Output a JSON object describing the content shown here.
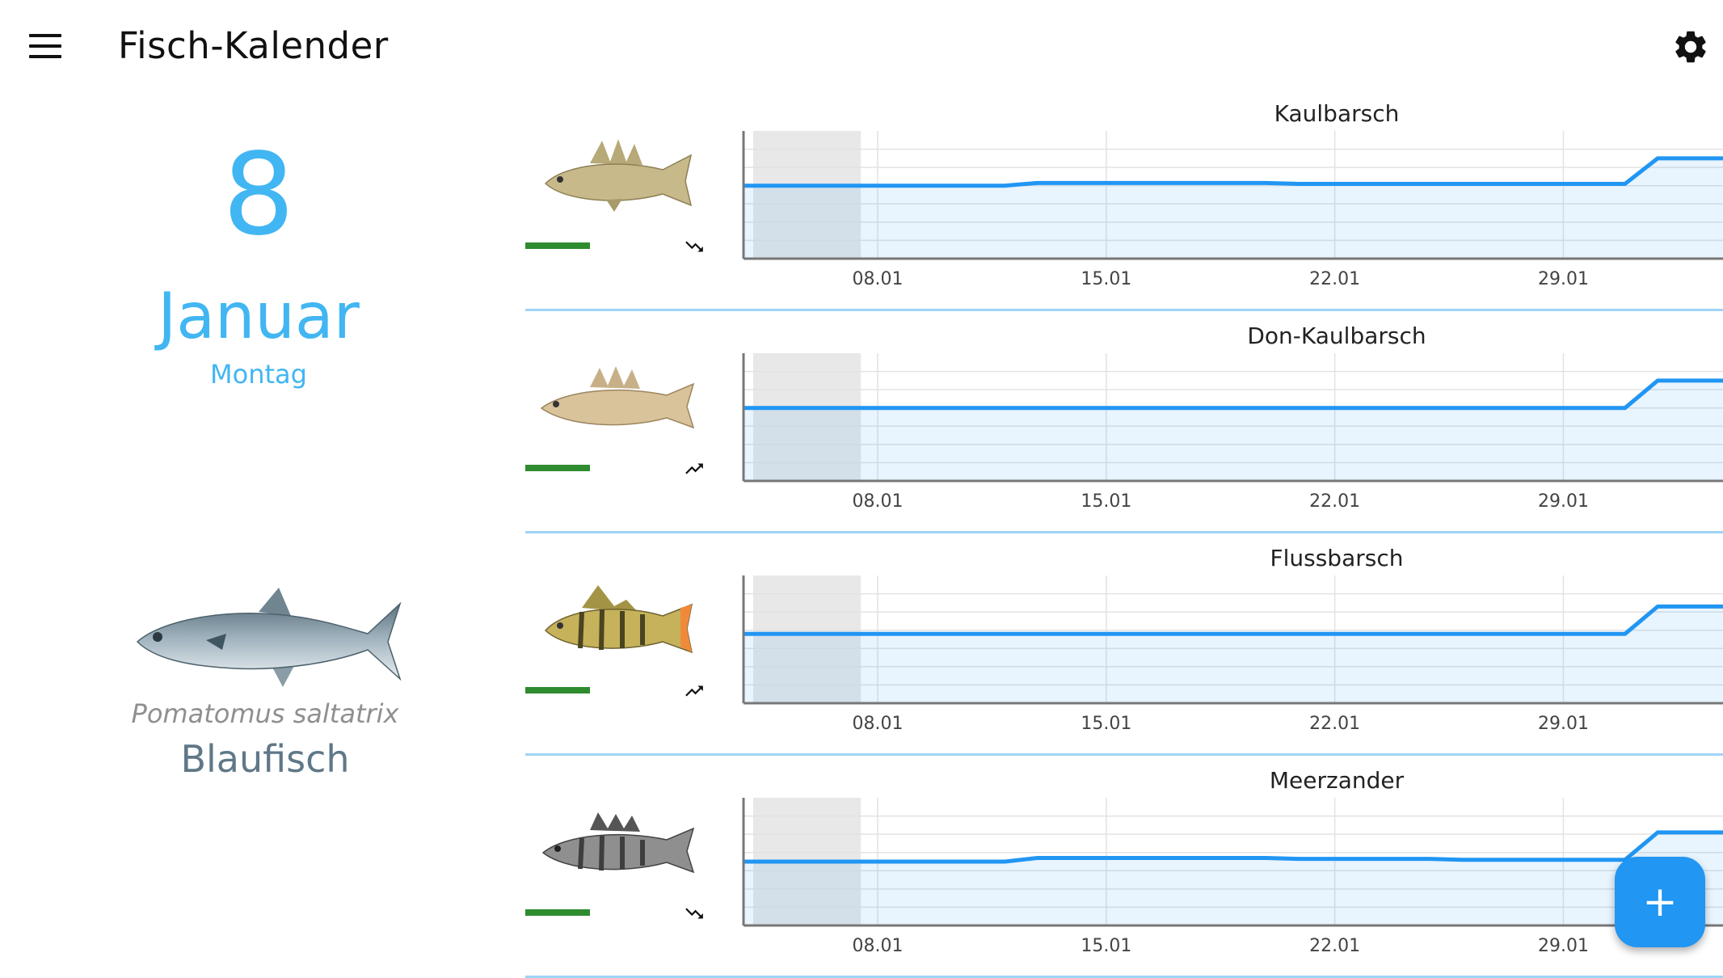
{
  "app": {
    "title": "Fisch-Kalender"
  },
  "icons": {
    "menu": "menu-icon",
    "settings": "gear-icon",
    "fab": "plus-icon"
  },
  "colors": {
    "accent": "#41b6f2",
    "line": "#2196f3",
    "trend_good": "#2e8b2e",
    "fab": "#2196f3"
  },
  "date": {
    "day": "8",
    "month": "Januar",
    "weekday": "Montag"
  },
  "featured_fish": {
    "latin_name": "Pomatomus saltatrix",
    "name": "Blaufisch"
  },
  "fish": [
    {
      "name": "Kaulbarsch",
      "trend": "trending-down"
    },
    {
      "name": "Don-Kaulbarsch",
      "trend": "trending-up"
    },
    {
      "name": "Flussbarsch",
      "trend": "trending-up"
    },
    {
      "name": "Meerzander",
      "trend": "trending-down"
    }
  ],
  "chart_data": [
    {
      "type": "area",
      "title": "Kaulbarsch",
      "x_ticks": [
        "08.01",
        "15.01",
        "22.01",
        "29.01"
      ],
      "x": [
        "05.01",
        "06.01",
        "07.01",
        "08.01",
        "09.01",
        "10.01",
        "11.01",
        "12.01",
        "13.01",
        "14.01",
        "15.01",
        "16.01",
        "17.01",
        "18.01",
        "19.01",
        "20.01",
        "21.01",
        "22.01",
        "23.01",
        "24.01",
        "25.01",
        "26.01",
        "27.01",
        "28.01",
        "29.01",
        "30.01",
        "31.01",
        "01.02",
        "02.02",
        "03.02",
        "04.02"
      ],
      "values": [
        4,
        4,
        4,
        4,
        4,
        4,
        4,
        4,
        4,
        4.15,
        4.15,
        4.15,
        4.15,
        4.15,
        4.15,
        4.15,
        4.15,
        4.1,
        4.1,
        4.1,
        4.1,
        4.1,
        4.1,
        4.1,
        4.1,
        4.1,
        4.1,
        4.1,
        5.5,
        5.5,
        5.5
      ],
      "ylim": [
        0,
        7
      ],
      "highlight_x": [
        "05.01",
        "08.01"
      ],
      "grid": true
    },
    {
      "type": "area",
      "title": "Don-Kaulbarsch",
      "x_ticks": [
        "08.01",
        "15.01",
        "22.01",
        "29.01"
      ],
      "x": [
        "05.01",
        "06.01",
        "07.01",
        "08.01",
        "09.01",
        "10.01",
        "11.01",
        "12.01",
        "13.01",
        "14.01",
        "15.01",
        "16.01",
        "17.01",
        "18.01",
        "19.01",
        "20.01",
        "21.01",
        "22.01",
        "23.01",
        "24.01",
        "25.01",
        "26.01",
        "27.01",
        "28.01",
        "29.01",
        "30.01",
        "31.01",
        "01.02",
        "02.02",
        "03.02",
        "04.02"
      ],
      "values": [
        4,
        4,
        4,
        4,
        4,
        4,
        4,
        4,
        4,
        4,
        4,
        4,
        4,
        4,
        4,
        4,
        4,
        4,
        4,
        4,
        4,
        4,
        4,
        4,
        4,
        4,
        4,
        4,
        5.5,
        5.5,
        5.5
      ],
      "ylim": [
        0,
        7
      ],
      "highlight_x": [
        "05.01",
        "08.01"
      ],
      "grid": true
    },
    {
      "type": "area",
      "title": "Flussbarsch",
      "x_ticks": [
        "08.01",
        "15.01",
        "22.01",
        "29.01"
      ],
      "x": [
        "05.01",
        "06.01",
        "07.01",
        "08.01",
        "09.01",
        "10.01",
        "11.01",
        "12.01",
        "13.01",
        "14.01",
        "15.01",
        "16.01",
        "17.01",
        "18.01",
        "19.01",
        "20.01",
        "21.01",
        "22.01",
        "23.01",
        "24.01",
        "25.01",
        "26.01",
        "27.01",
        "28.01",
        "29.01",
        "30.01",
        "31.01",
        "01.02",
        "02.02",
        "03.02",
        "04.02"
      ],
      "values": [
        3.8,
        3.8,
        3.8,
        3.8,
        3.8,
        3.8,
        3.8,
        3.8,
        3.8,
        3.8,
        3.8,
        3.8,
        3.8,
        3.8,
        3.8,
        3.8,
        3.8,
        3.8,
        3.8,
        3.8,
        3.8,
        3.8,
        3.8,
        3.8,
        3.8,
        3.8,
        3.8,
        3.8,
        5.3,
        5.3,
        5.3
      ],
      "ylim": [
        0,
        7
      ],
      "highlight_x": [
        "05.01",
        "08.01"
      ],
      "grid": true
    },
    {
      "type": "area",
      "title": "Meerzander",
      "x_ticks": [
        "08.01",
        "15.01",
        "22.01",
        "29.01"
      ],
      "x": [
        "05.01",
        "06.01",
        "07.01",
        "08.01",
        "09.01",
        "10.01",
        "11.01",
        "12.01",
        "13.01",
        "14.01",
        "15.01",
        "16.01",
        "17.01",
        "18.01",
        "19.01",
        "20.01",
        "21.01",
        "22.01",
        "23.01",
        "24.01",
        "25.01",
        "26.01",
        "27.01",
        "28.01",
        "29.01",
        "30.01",
        "31.01",
        "01.02",
        "02.02",
        "03.02",
        "04.02"
      ],
      "values": [
        3.5,
        3.5,
        3.5,
        3.5,
        3.5,
        3.5,
        3.5,
        3.5,
        3.5,
        3.7,
        3.7,
        3.7,
        3.7,
        3.7,
        3.7,
        3.7,
        3.7,
        3.65,
        3.65,
        3.65,
        3.65,
        3.65,
        3.6,
        3.6,
        3.6,
        3.6,
        3.6,
        3.6,
        5.1,
        5.1,
        5.1
      ],
      "ylim": [
        0,
        7
      ],
      "highlight_x": [
        "05.01",
        "08.01"
      ],
      "grid": true
    }
  ]
}
